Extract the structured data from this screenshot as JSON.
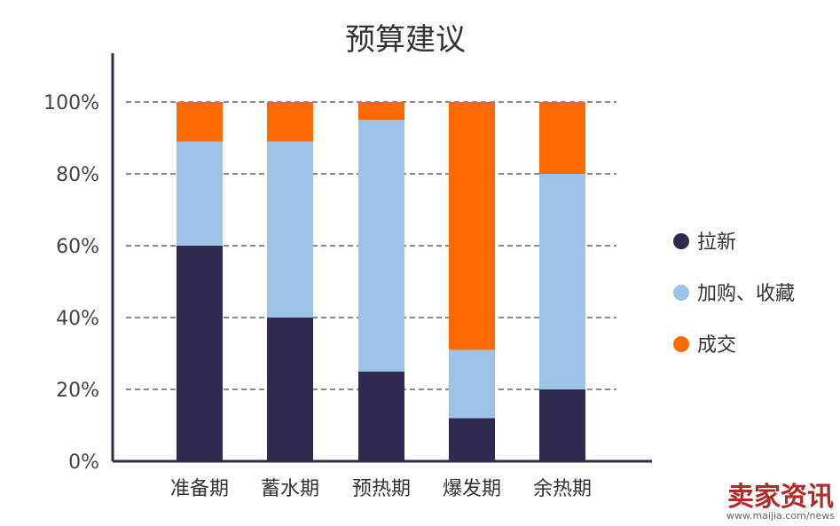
{
  "chart_data": {
    "type": "bar",
    "stacked": true,
    "title": "预算建议",
    "xlabel": "",
    "ylabel": "",
    "ylim": [
      0,
      100
    ],
    "y_ticks": [
      "0%",
      "20%",
      "40%",
      "60%",
      "80%",
      "100%"
    ],
    "grid": "dashed-horizontal",
    "legend_position": "right",
    "categories": [
      "准备期",
      "蓄水期",
      "预热期",
      "爆发期",
      "余热期"
    ],
    "series": [
      {
        "name": "拉新",
        "color": "#2f2a4f",
        "values": [
          60,
          40,
          25,
          12,
          20
        ]
      },
      {
        "name": "加购、收藏",
        "color": "#9dc3e6",
        "values": [
          29,
          49,
          70,
          19,
          60
        ]
      },
      {
        "name": "成交",
        "color": "#ff6a00",
        "values": [
          11,
          11,
          5,
          69,
          20
        ]
      }
    ]
  },
  "watermark": {
    "text": "卖家资讯",
    "url": "www.maijia.com/news"
  }
}
